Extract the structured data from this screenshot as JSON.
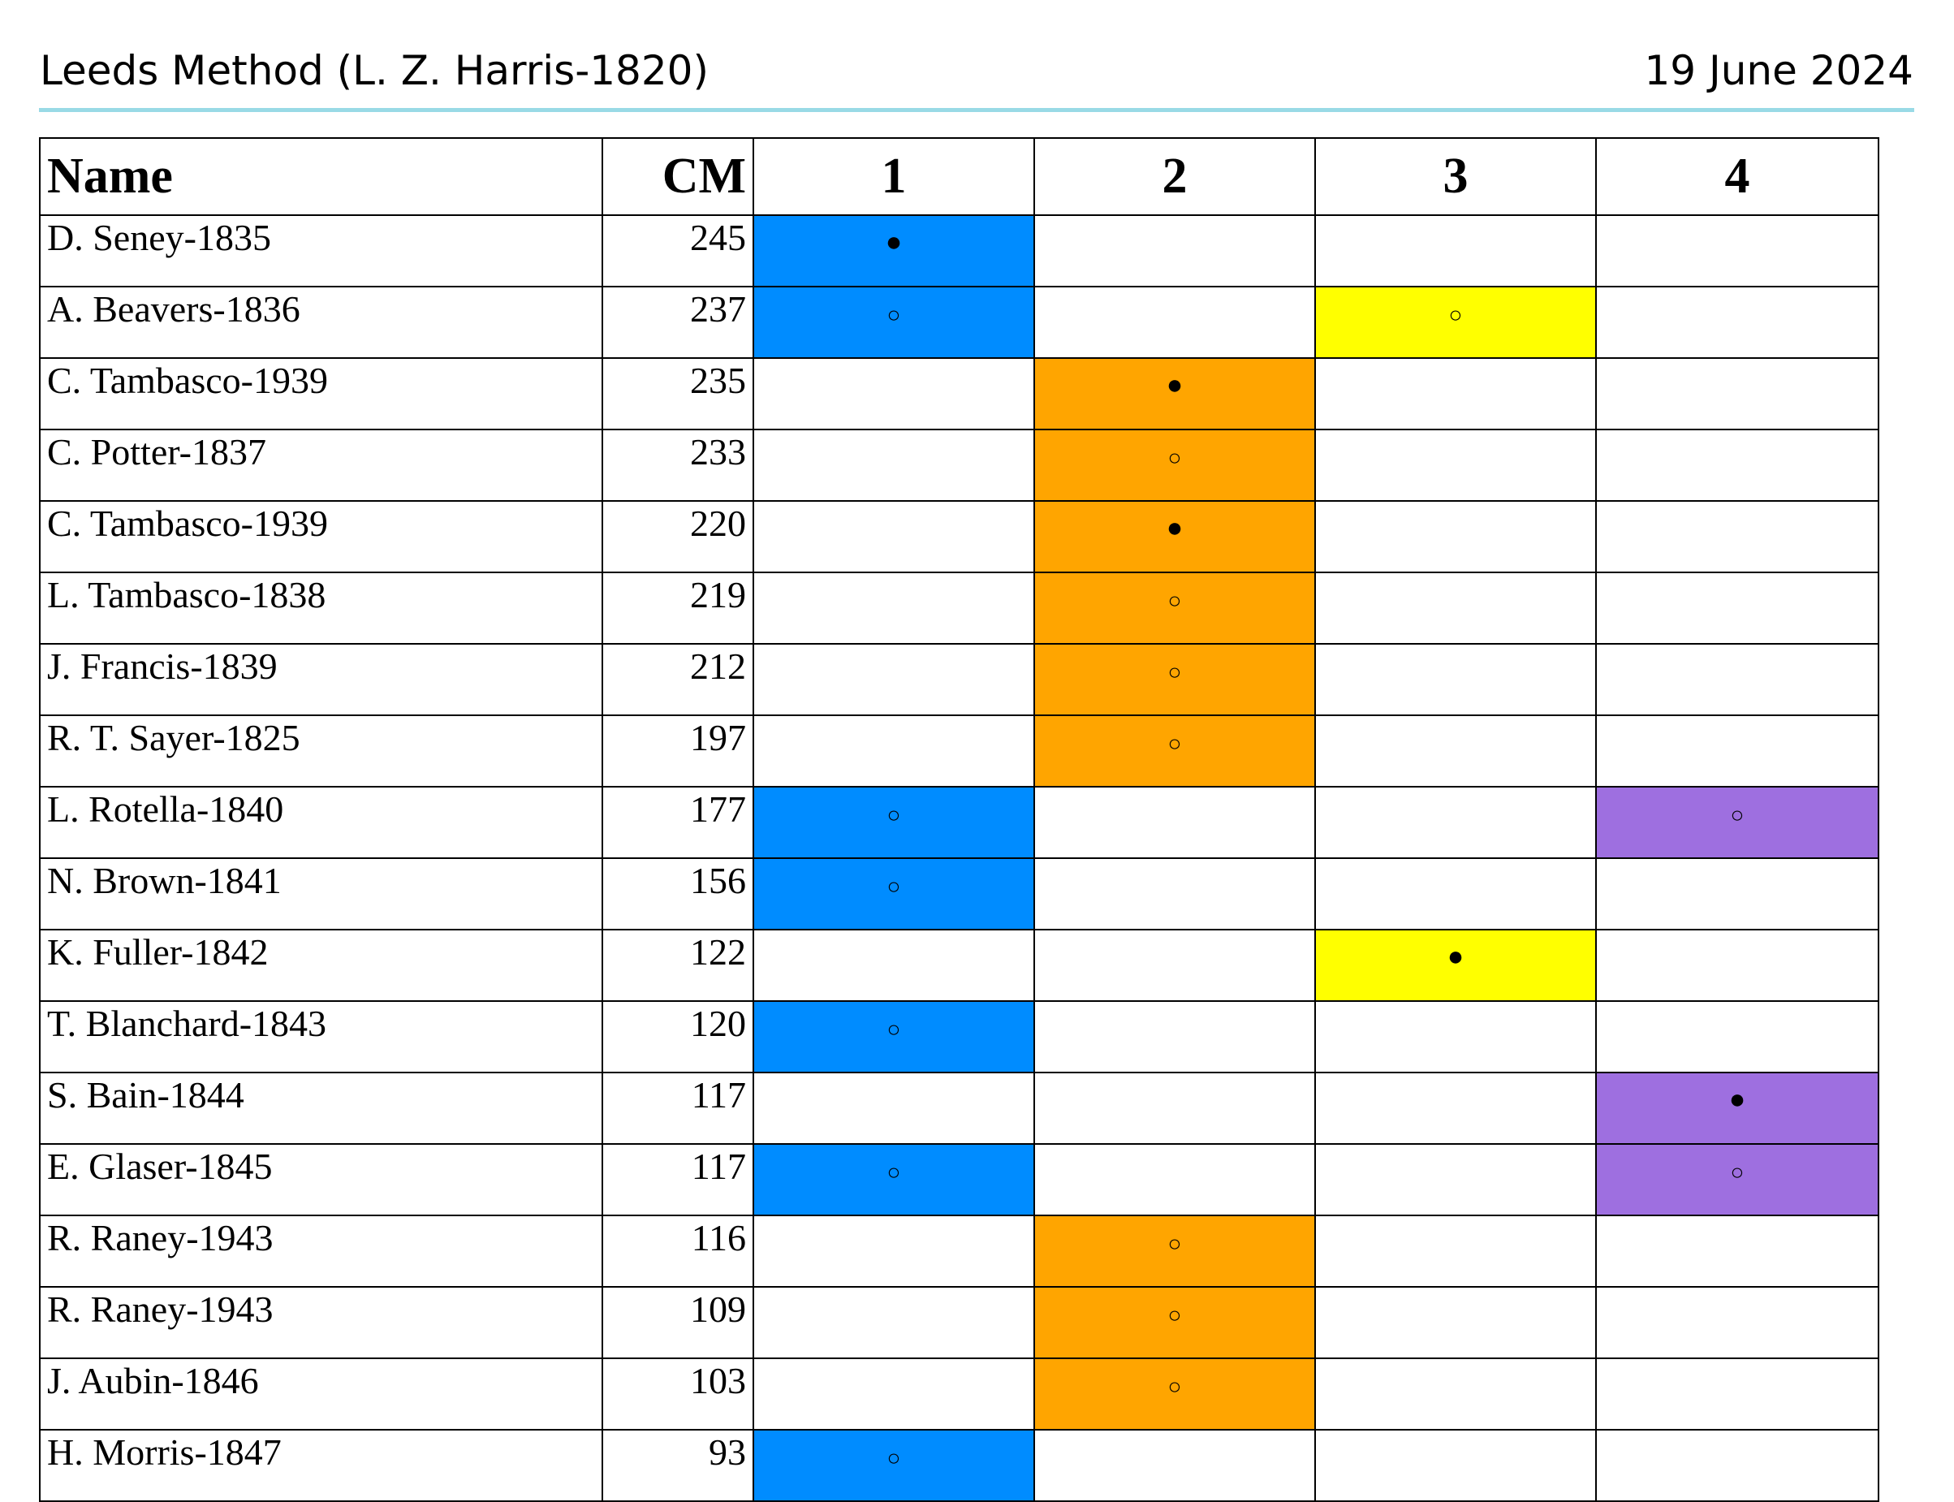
{
  "header": {
    "title": "Leeds Method (L. Z. Harris-1820)",
    "date": "19 June 2024"
  },
  "table": {
    "columns": [
      "Name",
      "CM",
      "1",
      "2",
      "3",
      "4"
    ],
    "colors": {
      "1": "#008CFF",
      "2": "#FFA500",
      "3": "#FFFF00",
      "4": "#9E6FE0"
    },
    "markers": {
      "filled": "●",
      "hollow": "○"
    },
    "rows": [
      {
        "name": "D. Seney-1835",
        "cm": "245",
        "group": 1,
        "marker": "filled"
      },
      {
        "name": "A. Beavers-1836",
        "cm": "237",
        "group": 1,
        "marker": "hollow",
        "group2": 3,
        "marker2": "hollow"
      },
      {
        "name": "C. Tambasco-1939",
        "cm": "235",
        "group": 2,
        "marker": "filled"
      },
      {
        "name": "C. Potter-1837",
        "cm": "233",
        "group": 2,
        "marker": "hollow"
      },
      {
        "name": "C. Tambasco-1939",
        "cm": "220",
        "group": 2,
        "marker": "filled"
      },
      {
        "name": "L. Tambasco-1838",
        "cm": "219",
        "group": 2,
        "marker": "hollow"
      },
      {
        "name": "J. Francis-1839",
        "cm": "212",
        "group": 2,
        "marker": "hollow"
      },
      {
        "name": "R. T. Sayer-1825",
        "cm": "197",
        "group": 2,
        "marker": "hollow"
      },
      {
        "name": "L. Rotella-1840",
        "cm": "177",
        "group": 1,
        "marker": "hollow",
        "group2": 4,
        "marker2": "hollow"
      },
      {
        "name": "N. Brown-1841",
        "cm": "156",
        "group": 1,
        "marker": "hollow"
      },
      {
        "name": "K. Fuller-1842",
        "cm": "122",
        "group": 3,
        "marker": "filled"
      },
      {
        "name": "T. Blanchard-1843",
        "cm": "120",
        "group": 1,
        "marker": "hollow"
      },
      {
        "name": "S. Bain-1844",
        "cm": "117",
        "group": 4,
        "marker": "filled"
      },
      {
        "name": "E. Glaser-1845",
        "cm": "117",
        "group": 1,
        "marker": "hollow",
        "group2": 4,
        "marker2": "hollow"
      },
      {
        "name": "R. Raney-1943",
        "cm": "116",
        "group": 2,
        "marker": "hollow"
      },
      {
        "name": "R. Raney-1943",
        "cm": "109",
        "group": 2,
        "marker": "hollow"
      },
      {
        "name": "J. Aubin-1846",
        "cm": "103",
        "group": 2,
        "marker": "hollow"
      },
      {
        "name": "H. Morris-1847",
        "cm": "93",
        "group": 1,
        "marker": "hollow"
      }
    ]
  }
}
